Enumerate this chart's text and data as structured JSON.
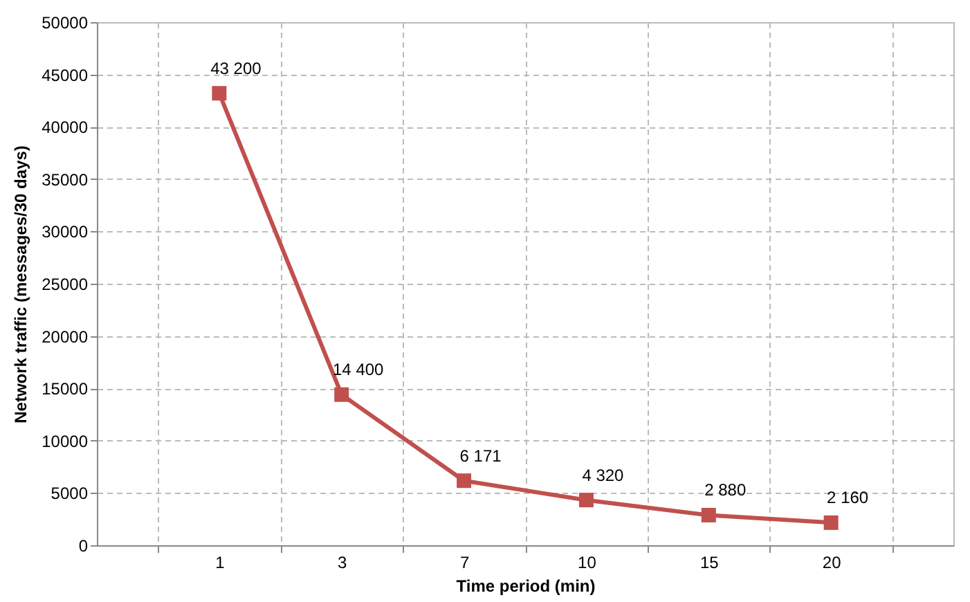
{
  "chart_data": {
    "type": "line",
    "xlabel": "Time period (min)",
    "ylabel": "Network traffic (messages/30 days)",
    "categories": [
      "1",
      "3",
      "7",
      "10",
      "15",
      "20"
    ],
    "series": [
      {
        "color": "#c0504d",
        "values": [
          43200,
          14400,
          6171,
          4320,
          2880,
          2160
        ],
        "value_labels": [
          "43 200",
          "14 400",
          "6 171",
          "4 320",
          "2 880",
          "2 160"
        ]
      }
    ],
    "ylim": [
      0,
      50000
    ],
    "yticks": [
      0,
      5000,
      10000,
      15000,
      20000,
      25000,
      30000,
      35000,
      40000,
      45000,
      50000
    ],
    "grid": true,
    "marker": "square",
    "line_style": "solid"
  }
}
